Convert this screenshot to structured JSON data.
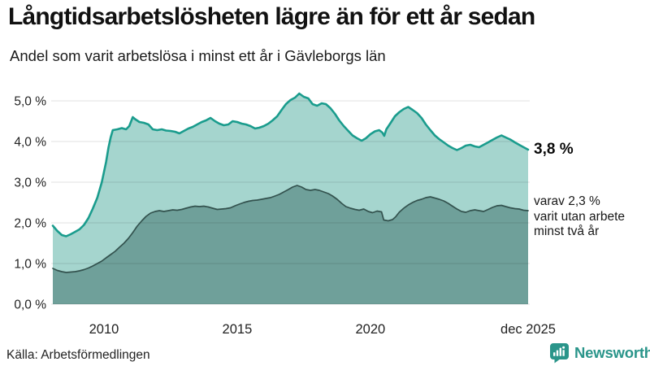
{
  "header": {
    "title": "Långtidsarbetslösheten lägre än för ett år sedan",
    "subtitle": "Andel som varit arbetslösa i minst ett år i Gävleborgs län"
  },
  "annotations": {
    "total_label": "3,8 %",
    "sub_lines": [
      "varav 2,3 %",
      "varit utan arbete",
      "minst två år"
    ]
  },
  "footer": {
    "source": "Källa: Arbetsförmedlingen",
    "brand": "Newsworthy"
  },
  "colors": {
    "accent_line": "#1a9c8d",
    "accent_fill": "#a5d5ce",
    "dark_line": "#33524e",
    "dark_fill": "#6fa09a",
    "grid": "rgba(0,0,0,0.12)",
    "tick_text": "#222222",
    "brand_teal": "#2a958a"
  },
  "chart_data": {
    "type": "area",
    "title": "Långtidsarbetslösheten lägre än för ett år sedan",
    "subtitle": "Andel som varit arbetslösa i minst ett år i Gävleborgs län",
    "grid": true,
    "legend_position": "none",
    "x_range": [
      2008.08,
      2025.92
    ],
    "y_range": [
      0,
      5.48
    ],
    "y_ticks": [
      {
        "label": "0,0 %",
        "value": 0
      },
      {
        "label": "1,0 %",
        "value": 1
      },
      {
        "label": "2,0 %",
        "value": 2
      },
      {
        "label": "3,0 %",
        "value": 3
      },
      {
        "label": "4,0 %",
        "value": 4
      },
      {
        "label": "5,0 %",
        "value": 5
      }
    ],
    "x_ticks": [
      {
        "label": "2010",
        "value": 2010
      },
      {
        "label": "2015",
        "value": 2015
      },
      {
        "label": "2020",
        "value": 2020
      },
      {
        "label": "dec 2025",
        "value": 2025.92
      }
    ],
    "series": [
      {
        "id": "minst-ett-ar",
        "end_label": "3,8 %",
        "last_value": 3.8,
        "points": [
          [
            2008.08,
            1.93
          ],
          [
            2008.25,
            1.8
          ],
          [
            2008.42,
            1.7
          ],
          [
            2008.58,
            1.67
          ],
          [
            2008.75,
            1.72
          ],
          [
            2008.92,
            1.78
          ],
          [
            2009.08,
            1.84
          ],
          [
            2009.25,
            1.95
          ],
          [
            2009.42,
            2.12
          ],
          [
            2009.58,
            2.35
          ],
          [
            2009.75,
            2.62
          ],
          [
            2009.92,
            3.0
          ],
          [
            2010.08,
            3.5
          ],
          [
            2010.17,
            3.85
          ],
          [
            2010.25,
            4.1
          ],
          [
            2010.33,
            4.28
          ],
          [
            2010.5,
            4.3
          ],
          [
            2010.67,
            4.33
          ],
          [
            2010.83,
            4.3
          ],
          [
            2010.95,
            4.38
          ],
          [
            2011.08,
            4.6
          ],
          [
            2011.17,
            4.55
          ],
          [
            2011.33,
            4.48
          ],
          [
            2011.5,
            4.46
          ],
          [
            2011.67,
            4.42
          ],
          [
            2011.83,
            4.3
          ],
          [
            2012.0,
            4.28
          ],
          [
            2012.17,
            4.3
          ],
          [
            2012.33,
            4.27
          ],
          [
            2012.5,
            4.26
          ],
          [
            2012.67,
            4.24
          ],
          [
            2012.83,
            4.2
          ],
          [
            2013.0,
            4.26
          ],
          [
            2013.17,
            4.32
          ],
          [
            2013.33,
            4.36
          ],
          [
            2013.5,
            4.42
          ],
          [
            2013.67,
            4.48
          ],
          [
            2013.83,
            4.52
          ],
          [
            2014.0,
            4.58
          ],
          [
            2014.17,
            4.5
          ],
          [
            2014.33,
            4.44
          ],
          [
            2014.5,
            4.4
          ],
          [
            2014.67,
            4.42
          ],
          [
            2014.83,
            4.5
          ],
          [
            2015.0,
            4.48
          ],
          [
            2015.17,
            4.44
          ],
          [
            2015.33,
            4.42
          ],
          [
            2015.5,
            4.38
          ],
          [
            2015.67,
            4.32
          ],
          [
            2015.83,
            4.34
          ],
          [
            2016.0,
            4.38
          ],
          [
            2016.17,
            4.44
          ],
          [
            2016.33,
            4.52
          ],
          [
            2016.5,
            4.62
          ],
          [
            2016.67,
            4.78
          ],
          [
            2016.83,
            4.92
          ],
          [
            2017.0,
            5.02
          ],
          [
            2017.17,
            5.08
          ],
          [
            2017.33,
            5.18
          ],
          [
            2017.5,
            5.1
          ],
          [
            2017.67,
            5.06
          ],
          [
            2017.83,
            4.92
          ],
          [
            2018.0,
            4.88
          ],
          [
            2018.17,
            4.94
          ],
          [
            2018.33,
            4.92
          ],
          [
            2018.5,
            4.82
          ],
          [
            2018.67,
            4.68
          ],
          [
            2018.83,
            4.52
          ],
          [
            2019.0,
            4.38
          ],
          [
            2019.17,
            4.26
          ],
          [
            2019.33,
            4.15
          ],
          [
            2019.5,
            4.08
          ],
          [
            2019.67,
            4.02
          ],
          [
            2019.83,
            4.08
          ],
          [
            2020.0,
            4.18
          ],
          [
            2020.17,
            4.25
          ],
          [
            2020.33,
            4.28
          ],
          [
            2020.45,
            4.22
          ],
          [
            2020.52,
            4.14
          ],
          [
            2020.6,
            4.3
          ],
          [
            2020.75,
            4.45
          ],
          [
            2020.92,
            4.62
          ],
          [
            2021.08,
            4.72
          ],
          [
            2021.25,
            4.8
          ],
          [
            2021.42,
            4.85
          ],
          [
            2021.58,
            4.78
          ],
          [
            2021.75,
            4.7
          ],
          [
            2021.92,
            4.58
          ],
          [
            2022.08,
            4.42
          ],
          [
            2022.25,
            4.28
          ],
          [
            2022.42,
            4.15
          ],
          [
            2022.58,
            4.06
          ],
          [
            2022.75,
            3.98
          ],
          [
            2022.92,
            3.9
          ],
          [
            2023.08,
            3.84
          ],
          [
            2023.25,
            3.79
          ],
          [
            2023.42,
            3.84
          ],
          [
            2023.58,
            3.9
          ],
          [
            2023.75,
            3.92
          ],
          [
            2023.92,
            3.88
          ],
          [
            2024.08,
            3.86
          ],
          [
            2024.25,
            3.92
          ],
          [
            2024.42,
            3.98
          ],
          [
            2024.58,
            4.04
          ],
          [
            2024.75,
            4.1
          ],
          [
            2024.92,
            4.15
          ],
          [
            2025.08,
            4.1
          ],
          [
            2025.25,
            4.05
          ],
          [
            2025.42,
            3.98
          ],
          [
            2025.58,
            3.92
          ],
          [
            2025.75,
            3.86
          ],
          [
            2025.92,
            3.8
          ]
        ]
      },
      {
        "id": "minst-tva-ar",
        "end_label": "varav 2,3 % varit utan arbete minst två år",
        "last_value": 2.3,
        "points": [
          [
            2008.08,
            0.88
          ],
          [
            2008.25,
            0.83
          ],
          [
            2008.42,
            0.8
          ],
          [
            2008.58,
            0.78
          ],
          [
            2008.75,
            0.79
          ],
          [
            2008.92,
            0.8
          ],
          [
            2009.08,
            0.82
          ],
          [
            2009.25,
            0.85
          ],
          [
            2009.42,
            0.89
          ],
          [
            2009.58,
            0.94
          ],
          [
            2009.75,
            1.0
          ],
          [
            2009.92,
            1.06
          ],
          [
            2010.08,
            1.14
          ],
          [
            2010.25,
            1.22
          ],
          [
            2010.42,
            1.3
          ],
          [
            2010.58,
            1.4
          ],
          [
            2010.75,
            1.5
          ],
          [
            2010.92,
            1.62
          ],
          [
            2011.08,
            1.76
          ],
          [
            2011.25,
            1.92
          ],
          [
            2011.42,
            2.05
          ],
          [
            2011.58,
            2.16
          ],
          [
            2011.75,
            2.24
          ],
          [
            2011.92,
            2.28
          ],
          [
            2012.08,
            2.3
          ],
          [
            2012.25,
            2.28
          ],
          [
            2012.42,
            2.3
          ],
          [
            2012.58,
            2.32
          ],
          [
            2012.75,
            2.31
          ],
          [
            2012.92,
            2.33
          ],
          [
            2013.08,
            2.36
          ],
          [
            2013.25,
            2.39
          ],
          [
            2013.42,
            2.41
          ],
          [
            2013.58,
            2.4
          ],
          [
            2013.75,
            2.41
          ],
          [
            2013.92,
            2.39
          ],
          [
            2014.08,
            2.36
          ],
          [
            2014.25,
            2.33
          ],
          [
            2014.42,
            2.34
          ],
          [
            2014.58,
            2.35
          ],
          [
            2014.75,
            2.37
          ],
          [
            2014.92,
            2.42
          ],
          [
            2015.08,
            2.46
          ],
          [
            2015.25,
            2.5
          ],
          [
            2015.42,
            2.53
          ],
          [
            2015.58,
            2.55
          ],
          [
            2015.75,
            2.56
          ],
          [
            2015.92,
            2.58
          ],
          [
            2016.08,
            2.6
          ],
          [
            2016.25,
            2.62
          ],
          [
            2016.42,
            2.66
          ],
          [
            2016.58,
            2.7
          ],
          [
            2016.75,
            2.76
          ],
          [
            2016.92,
            2.82
          ],
          [
            2017.08,
            2.88
          ],
          [
            2017.25,
            2.92
          ],
          [
            2017.42,
            2.88
          ],
          [
            2017.58,
            2.82
          ],
          [
            2017.75,
            2.8
          ],
          [
            2017.92,
            2.82
          ],
          [
            2018.08,
            2.8
          ],
          [
            2018.25,
            2.76
          ],
          [
            2018.42,
            2.72
          ],
          [
            2018.58,
            2.66
          ],
          [
            2018.75,
            2.58
          ],
          [
            2018.92,
            2.48
          ],
          [
            2019.08,
            2.4
          ],
          [
            2019.25,
            2.36
          ],
          [
            2019.42,
            2.33
          ],
          [
            2019.58,
            2.31
          ],
          [
            2019.75,
            2.34
          ],
          [
            2019.92,
            2.28
          ],
          [
            2020.08,
            2.25
          ],
          [
            2020.25,
            2.29
          ],
          [
            2020.42,
            2.27
          ],
          [
            2020.5,
            2.07
          ],
          [
            2020.67,
            2.05
          ],
          [
            2020.83,
            2.08
          ],
          [
            2020.95,
            2.15
          ],
          [
            2021.08,
            2.26
          ],
          [
            2021.25,
            2.36
          ],
          [
            2021.42,
            2.44
          ],
          [
            2021.58,
            2.5
          ],
          [
            2021.75,
            2.55
          ],
          [
            2021.92,
            2.58
          ],
          [
            2022.08,
            2.62
          ],
          [
            2022.25,
            2.64
          ],
          [
            2022.42,
            2.61
          ],
          [
            2022.58,
            2.58
          ],
          [
            2022.75,
            2.54
          ],
          [
            2022.92,
            2.48
          ],
          [
            2023.08,
            2.41
          ],
          [
            2023.25,
            2.34
          ],
          [
            2023.42,
            2.28
          ],
          [
            2023.58,
            2.26
          ],
          [
            2023.75,
            2.3
          ],
          [
            2023.92,
            2.32
          ],
          [
            2024.08,
            2.3
          ],
          [
            2024.25,
            2.28
          ],
          [
            2024.42,
            2.33
          ],
          [
            2024.58,
            2.38
          ],
          [
            2024.75,
            2.42
          ],
          [
            2024.92,
            2.43
          ],
          [
            2025.08,
            2.4
          ],
          [
            2025.25,
            2.37
          ],
          [
            2025.42,
            2.35
          ],
          [
            2025.58,
            2.34
          ],
          [
            2025.75,
            2.31
          ],
          [
            2025.92,
            2.3
          ]
        ]
      }
    ]
  }
}
